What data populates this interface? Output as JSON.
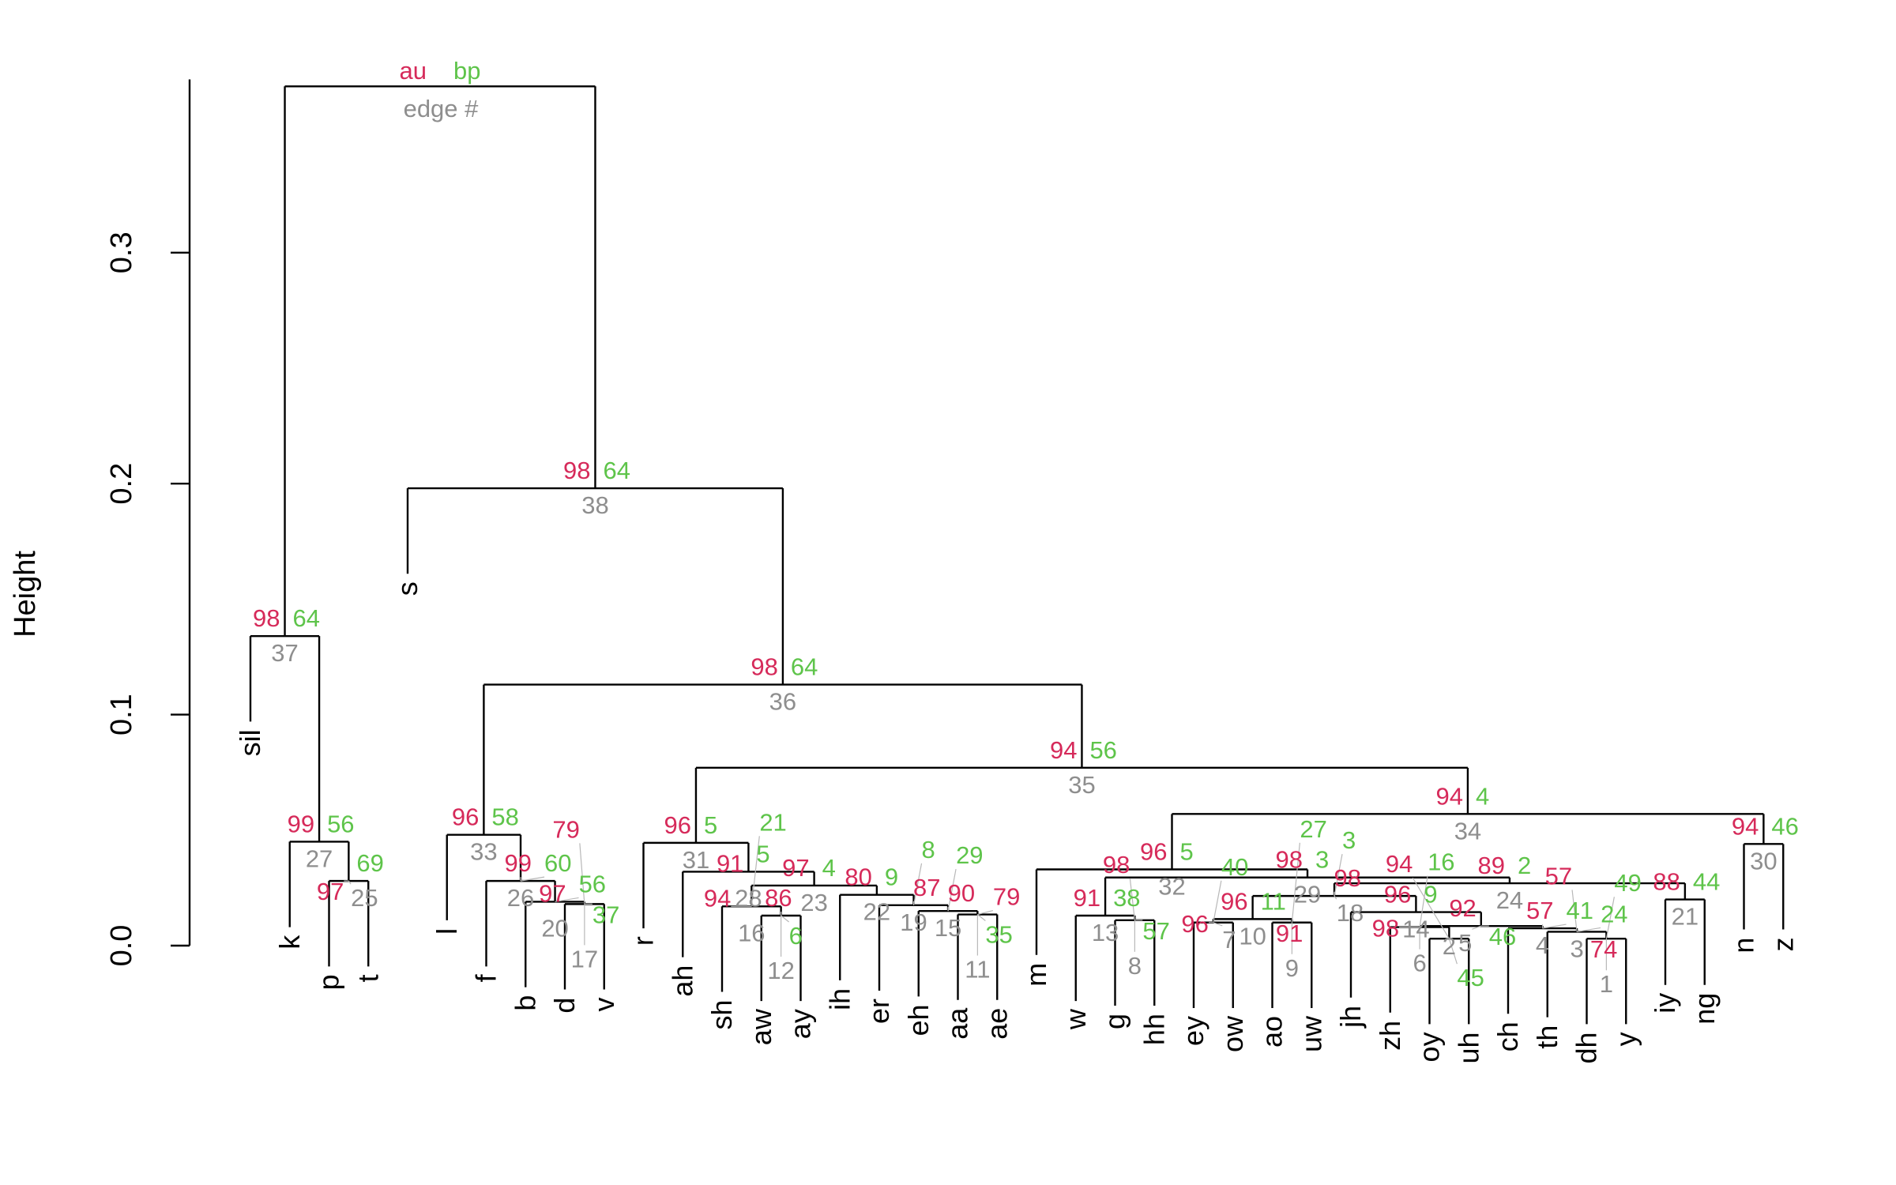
{
  "chart_data": {
    "type": "dendrogram",
    "ylabel": "Height",
    "ylim": [
      0,
      0.375
    ],
    "yticks": [
      "0.0",
      "0.1",
      "0.2",
      "0.3"
    ],
    "ytick_values": [
      0,
      0.1,
      0.2,
      0.3
    ],
    "hang": 0.037,
    "legend": {
      "au": "au",
      "bp": "bp",
      "edge": "edge #"
    },
    "colors": {
      "au": "#d62a5a",
      "bp": "#5ec44a",
      "edge": "#8e8e8e"
    },
    "leaves": [
      "sil",
      "k",
      "p",
      "t",
      "s",
      "l",
      "f",
      "b",
      "d",
      "v",
      "r",
      "ah",
      "sh",
      "aw",
      "ay",
      "ih",
      "er",
      "eh",
      "aa",
      "ae",
      "m",
      "w",
      "g",
      "hh",
      "ey",
      "ow",
      "ao",
      "uw",
      "jh",
      "zh",
      "oy",
      "uh",
      "ch",
      "th",
      "dh",
      "y",
      "iy",
      "ng",
      "n",
      "z"
    ],
    "merges": [
      {
        "id": "n25",
        "left": "p",
        "right": "t",
        "height": 0.028,
        "au": 97,
        "bp": 69,
        "edge": 25
      },
      {
        "id": "n27",
        "left": "k",
        "right": "n25",
        "height": 0.045,
        "au": 99,
        "bp": 56,
        "edge": 27
      },
      {
        "id": "n37",
        "left": "sil",
        "right": "n27",
        "height": 0.134,
        "au": 98,
        "bp": 64,
        "edge": 37
      },
      {
        "id": "n17",
        "left": "d",
        "right": "v",
        "height": 0.018,
        "au": 79,
        "bp": 37,
        "edge": 17
      },
      {
        "id": "n20",
        "left": "b",
        "right": "n17",
        "height": 0.019,
        "au": 97,
        "bp": 56,
        "edge": 20
      },
      {
        "id": "n26",
        "left": "f",
        "right": "n20",
        "height": 0.028,
        "au": 99,
        "bp": 60,
        "edge": 26
      },
      {
        "id": "n33",
        "left": "l",
        "right": "n26",
        "height": 0.048,
        "au": 96,
        "bp": 58,
        "edge": 33
      },
      {
        "id": "n11",
        "left": "aa",
        "right": "ae",
        "height": 0.0135,
        "au": 79,
        "bp": 35,
        "edge": 11
      },
      {
        "id": "n15",
        "left": "eh",
        "right": "n11",
        "height": 0.015,
        "au": 90,
        "bp": 29,
        "edge": 15
      },
      {
        "id": "n19",
        "left": "er",
        "right": "n15",
        "height": 0.0175,
        "au": 87,
        "bp": 8,
        "edge": 19
      },
      {
        "id": "n22",
        "left": "ih",
        "right": "n19",
        "height": 0.022,
        "au": 80,
        "bp": 9,
        "edge": 22
      },
      {
        "id": "n12",
        "left": "aw",
        "right": "ay",
        "height": 0.013,
        "au": 86,
        "bp": 6,
        "edge": 12
      },
      {
        "id": "n16",
        "left": "sh",
        "right": "n12",
        "height": 0.017,
        "au": 94,
        "bp": 21,
        "edge": 16
      },
      {
        "id": "n23",
        "left": "n16",
        "right": "n22",
        "height": 0.026,
        "au": 97,
        "bp": 4,
        "edge": 23
      },
      {
        "id": "n28",
        "left": "ah",
        "right": "n23",
        "height": 0.032,
        "au": 91,
        "bp": 5,
        "edge": 28
      },
      {
        "id": "n31",
        "left": "r",
        "right": "n28",
        "height": 0.0445,
        "au": 96,
        "bp": 5,
        "edge": 31
      },
      {
        "id": "n8",
        "left": "g",
        "right": "hh",
        "height": 0.011,
        "au": 98,
        "bp": 57,
        "edge": 8
      },
      {
        "id": "n13",
        "left": "w",
        "right": "n8",
        "height": 0.013,
        "au": 91,
        "bp": 38,
        "edge": 13
      },
      {
        "id": "n7",
        "left": "ey",
        "right": "ow",
        "height": 0.01,
        "au": 96,
        "bp": 40,
        "edge": 7
      },
      {
        "id": "n9",
        "left": "ao",
        "right": "uw",
        "height": 0.01,
        "au": 91,
        "bp": 27,
        "edge": 9
      },
      {
        "id": "n10",
        "left": "n7",
        "right": "n9",
        "height": 0.0115,
        "au": 96,
        "bp": 11,
        "edge": 10
      },
      {
        "id": "n2",
        "left": "oy",
        "right": "uh",
        "height": 0.003,
        "au": 94,
        "bp": 45,
        "edge": 2
      },
      {
        "id": "n6",
        "left": "zh",
        "right": "n2",
        "height": 0.008,
        "au": 98,
        "bp": 16,
        "edge": 6
      },
      {
        "id": "n1",
        "left": "dh",
        "right": "y",
        "height": 0.003,
        "au": 74,
        "bp": 49,
        "edge": 1
      },
      {
        "id": "n3",
        "left": "th",
        "right": "n1",
        "height": 0.006,
        "au": 57,
        "bp": 24,
        "edge": 3
      },
      {
        "id": "n4",
        "left": "ch",
        "right": "n3",
        "height": 0.0075,
        "au": 57,
        "bp": 41,
        "edge": 4
      },
      {
        "id": "n5",
        "left": "n6",
        "right": "n4",
        "height": 0.0085,
        "au": 92,
        "bp": 46,
        "edge": 5
      },
      {
        "id": "n14",
        "left": "jh",
        "right": "n5",
        "height": 0.0145,
        "au": 96,
        "bp": 9,
        "edge": 14
      },
      {
        "id": "n18",
        "left": "n10",
        "right": "n14",
        "height": 0.0215,
        "au": 98,
        "bp": 3,
        "edge": 18
      },
      {
        "id": "n21",
        "left": "iy",
        "right": "ng",
        "height": 0.02,
        "au": 88,
        "bp": 44,
        "edge": 21
      },
      {
        "id": "n24",
        "left": "n18",
        "right": "n21",
        "height": 0.027,
        "au": 89,
        "bp": 2,
        "edge": 24
      },
      {
        "id": "n29",
        "left": "n13",
        "right": "n24",
        "height": 0.0295,
        "au": 98,
        "bp": 3,
        "edge": 29
      },
      {
        "id": "n32",
        "left": "m",
        "right": "n29",
        "height": 0.033,
        "au": 96,
        "bp": 5,
        "edge": 32
      },
      {
        "id": "n30",
        "left": "n",
        "right": "z",
        "height": 0.044,
        "au": 94,
        "bp": 46,
        "edge": 30
      },
      {
        "id": "n34",
        "left": "n32",
        "right": "n30",
        "height": 0.057,
        "au": 94,
        "bp": 4,
        "edge": 34
      },
      {
        "id": "n35",
        "left": "n31",
        "right": "n34",
        "height": 0.077,
        "au": 94,
        "bp": 56,
        "edge": 35
      },
      {
        "id": "n36",
        "left": "n33",
        "right": "n35",
        "height": 0.113,
        "au": 98,
        "bp": 64,
        "edge": 36
      },
      {
        "id": "n38",
        "left": "s",
        "right": "n36",
        "height": 0.198,
        "au": 98,
        "bp": 64,
        "edge": 38
      }
    ],
    "root": {
      "left": "n37",
      "right": "n38",
      "height": 0.372
    }
  }
}
